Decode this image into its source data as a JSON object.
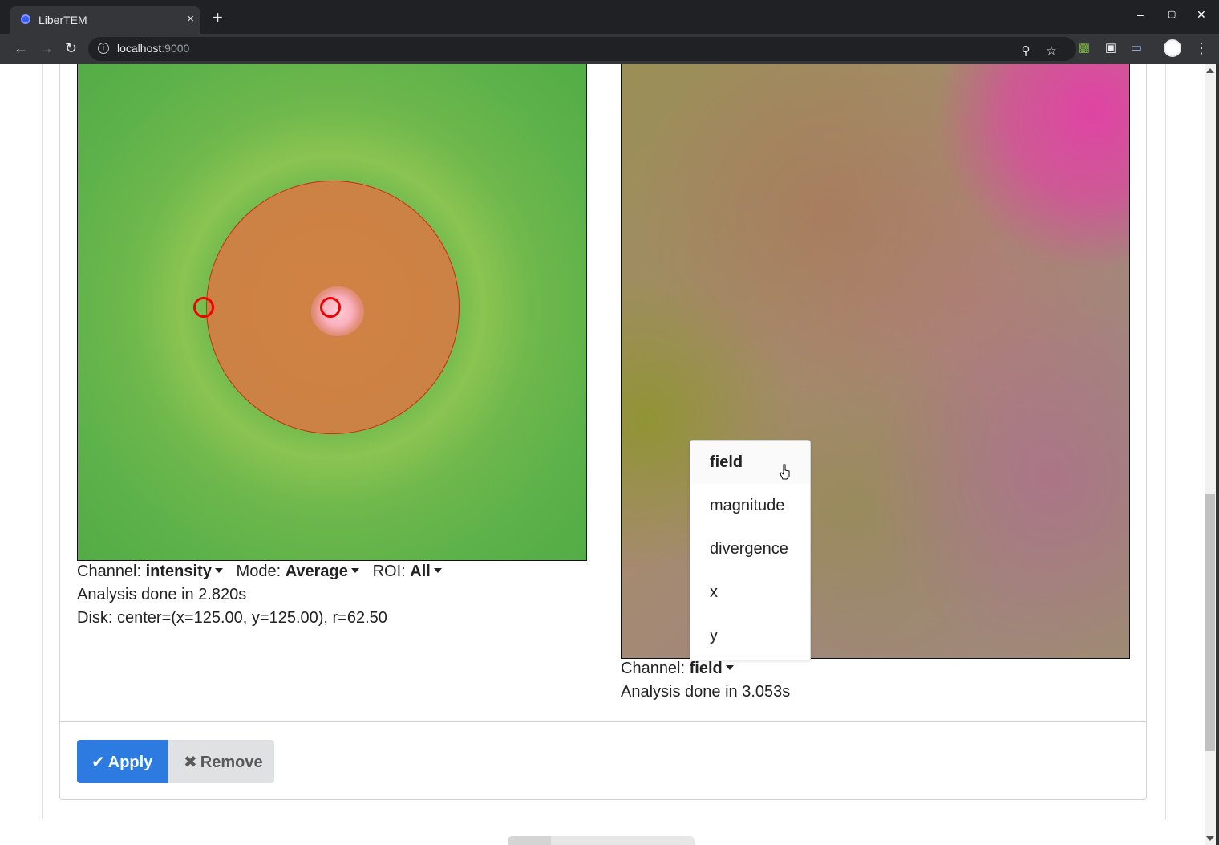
{
  "browser": {
    "tab_title": "LiberTEM",
    "tab_close": "×",
    "new_tab": "+",
    "url_host": "localhost",
    "url_port": ":9000",
    "window_controls": [
      "–",
      "▢",
      "✕"
    ]
  },
  "left_panel": {
    "controls": {
      "channel_label": "Channel:",
      "channel_value": "intensity",
      "mode_label": "Mode:",
      "mode_value": "Average",
      "roi_label": "ROI:",
      "roi_value": "All"
    },
    "status": "Analysis done in 2.820s",
    "disk": "Disk: center=(x=125.00, y=125.00), r=62.50"
  },
  "right_panel": {
    "controls": {
      "channel_label": "Channel:",
      "channel_value": "field"
    },
    "status": "Analysis done in 3.053s",
    "dropdown": {
      "open": true,
      "selected": "field",
      "options": [
        "field",
        "magnitude",
        "divergence",
        "x",
        "y"
      ]
    }
  },
  "actions": {
    "apply_label": "Apply",
    "remove_label": "Remove"
  },
  "icons": {
    "apply_icon": "check-icon",
    "remove_icon": "x-mark-icon"
  },
  "colors": {
    "apply_button": "#2d7be0",
    "remove_button": "#e0e1e2",
    "handle": "#ee0000",
    "disk_fill": "#d47d43"
  }
}
